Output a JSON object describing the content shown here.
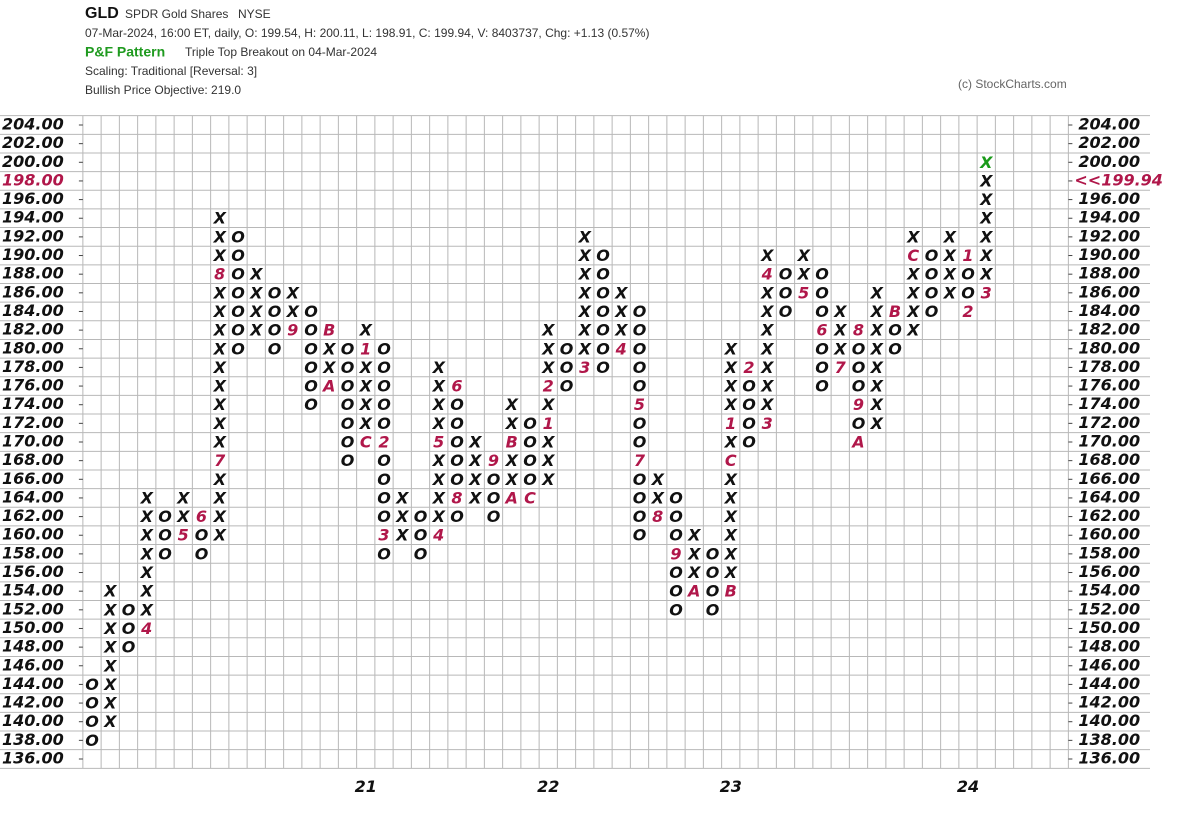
{
  "header": {
    "symbol": "GLD",
    "name": "SPDR Gold Shares",
    "exchange": "NYSE",
    "quote": "07-Mar-2024, 16:00 ET, daily, O: 199.54, H: 200.11, L: 198.91, C: 199.94, V: 8403737, Chg: +1.13 (0.57%)",
    "pattern_label": "P&F Pattern",
    "pattern": "Triple Top Breakout on 04-Mar-2024",
    "scaling": "Scaling: Traditional [Reversal: 3]",
    "objective": "Bullish Price Objective: 219.0",
    "credit": "(c) StockCharts.com"
  },
  "chart_data": {
    "type": "point-and-figure",
    "ylim": [
      136,
      204
    ],
    "yticks": [
      {
        "value": 204,
        "label": "204.00"
      },
      {
        "value": 202,
        "label": "202.00"
      },
      {
        "value": 200,
        "label": "200.00"
      },
      {
        "value": 198,
        "label": "198.00"
      },
      {
        "value": 196,
        "label": "196.00"
      },
      {
        "value": 194,
        "label": "194.00"
      },
      {
        "value": 192,
        "label": "192.00"
      },
      {
        "value": 190,
        "label": "190.00"
      },
      {
        "value": 188,
        "label": "188.00"
      },
      {
        "value": 186,
        "label": "186.00"
      },
      {
        "value": 184,
        "label": "184.00"
      },
      {
        "value": 182,
        "label": "182.00"
      },
      {
        "value": 180,
        "label": "180.00"
      },
      {
        "value": 178,
        "label": "178.00"
      },
      {
        "value": 176,
        "label": "176.00"
      },
      {
        "value": 174,
        "label": "174.00"
      },
      {
        "value": 172,
        "label": "172.00"
      },
      {
        "value": 170,
        "label": "170.00"
      },
      {
        "value": 168,
        "label": "168.00"
      },
      {
        "value": 166,
        "label": "166.00"
      },
      {
        "value": 164,
        "label": "164.00"
      },
      {
        "value": 162,
        "label": "162.00"
      },
      {
        "value": 160,
        "label": "160.00"
      },
      {
        "value": 158,
        "label": "158.00"
      },
      {
        "value": 156,
        "label": "156.00"
      },
      {
        "value": 154,
        "label": "154.00"
      },
      {
        "value": 152,
        "label": "152.00"
      },
      {
        "value": 150,
        "label": "150.00"
      },
      {
        "value": 148,
        "label": "148.00"
      },
      {
        "value": 146,
        "label": "146.00"
      },
      {
        "value": 144,
        "label": "144.00"
      },
      {
        "value": 142,
        "label": "142.00"
      },
      {
        "value": 140,
        "label": "140.00"
      },
      {
        "value": 138,
        "label": "138.00"
      },
      {
        "value": 136,
        "label": "136.00"
      }
    ],
    "last": {
      "value": 199.94,
      "label": "<<199.94"
    },
    "colors": {
      "symbol": "#111111",
      "month": "#b0174a",
      "current": "#1a9a1a",
      "grid": "#b8b8b8"
    },
    "year_marks": [
      {
        "column": 15,
        "label": "21"
      },
      {
        "column": 25,
        "label": "22"
      },
      {
        "column": 35,
        "label": "23"
      },
      {
        "column": 48,
        "label": "24"
      }
    ],
    "columns": [
      {
        "type": "O",
        "low": 138,
        "high": 144,
        "markers": []
      },
      {
        "type": "X",
        "low": 140,
        "high": 154,
        "markers": []
      },
      {
        "type": "O",
        "low": 148,
        "high": 152,
        "markers": []
      },
      {
        "type": "X",
        "low": 150,
        "high": 164,
        "markers": [
          {
            "value": 150,
            "label": "4"
          }
        ]
      },
      {
        "type": "O",
        "low": 158,
        "high": 162,
        "markers": []
      },
      {
        "type": "X",
        "low": 160,
        "high": 164,
        "markers": [
          {
            "value": 160,
            "label": "5"
          }
        ]
      },
      {
        "type": "O",
        "low": 158,
        "high": 162,
        "markers": [
          {
            "value": 162,
            "label": "6"
          }
        ]
      },
      {
        "type": "X",
        "low": 160,
        "high": 194,
        "markers": [
          {
            "value": 168,
            "label": "7"
          },
          {
            "value": 188,
            "label": "8"
          }
        ]
      },
      {
        "type": "O",
        "low": 180,
        "high": 192,
        "markers": []
      },
      {
        "type": "X",
        "low": 182,
        "high": 188,
        "markers": []
      },
      {
        "type": "O",
        "low": 180,
        "high": 186,
        "markers": []
      },
      {
        "type": "X",
        "low": 182,
        "high": 186,
        "markers": [
          {
            "value": 182,
            "label": "9"
          }
        ]
      },
      {
        "type": "O",
        "low": 174,
        "high": 184,
        "markers": []
      },
      {
        "type": "X",
        "low": 176,
        "high": 182,
        "markers": [
          {
            "value": 176,
            "label": "A"
          },
          {
            "value": 182,
            "label": "B"
          }
        ]
      },
      {
        "type": "O",
        "low": 168,
        "high": 180,
        "markers": []
      },
      {
        "type": "X",
        "low": 170,
        "high": 182,
        "markers": [
          {
            "value": 170,
            "label": "C"
          },
          {
            "value": 180,
            "label": "1"
          }
        ]
      },
      {
        "type": "O",
        "low": 158,
        "high": 180,
        "markers": [
          {
            "value": 170,
            "label": "2"
          },
          {
            "value": 160,
            "label": "3"
          }
        ]
      },
      {
        "type": "X",
        "low": 160,
        "high": 164,
        "markers": []
      },
      {
        "type": "O",
        "low": 158,
        "high": 162,
        "markers": []
      },
      {
        "type": "X",
        "low": 160,
        "high": 178,
        "markers": [
          {
            "value": 160,
            "label": "4"
          },
          {
            "value": 170,
            "label": "5"
          }
        ]
      },
      {
        "type": "O",
        "low": 162,
        "high": 176,
        "markers": [
          {
            "value": 176,
            "label": "6"
          },
          {
            "value": 164,
            "label": "8"
          }
        ]
      },
      {
        "type": "X",
        "low": 164,
        "high": 170,
        "markers": []
      },
      {
        "type": "O",
        "low": 162,
        "high": 168,
        "markers": [
          {
            "value": 168,
            "label": "9"
          }
        ]
      },
      {
        "type": "X",
        "low": 164,
        "high": 174,
        "markers": [
          {
            "value": 164,
            "label": "A"
          },
          {
            "value": 170,
            "label": "B"
          }
        ]
      },
      {
        "type": "O",
        "low": 164,
        "high": 172,
        "markers": [
          {
            "value": 164,
            "label": "C"
          }
        ]
      },
      {
        "type": "X",
        "low": 166,
        "high": 182,
        "markers": [
          {
            "value": 172,
            "label": "1"
          },
          {
            "value": 176,
            "label": "2"
          }
        ]
      },
      {
        "type": "O",
        "low": 176,
        "high": 180,
        "markers": []
      },
      {
        "type": "X",
        "low": 178,
        "high": 192,
        "markers": [
          {
            "value": 178,
            "label": "3"
          }
        ]
      },
      {
        "type": "O",
        "low": 178,
        "high": 190,
        "markers": []
      },
      {
        "type": "X",
        "low": 180,
        "high": 186,
        "markers": [
          {
            "value": 180,
            "label": "4"
          }
        ]
      },
      {
        "type": "O",
        "low": 160,
        "high": 184,
        "markers": [
          {
            "value": 174,
            "label": "5"
          },
          {
            "value": 168,
            "label": "7"
          }
        ]
      },
      {
        "type": "X",
        "low": 162,
        "high": 166,
        "markers": [
          {
            "value": 162,
            "label": "8"
          }
        ]
      },
      {
        "type": "O",
        "low": 152,
        "high": 164,
        "markers": [
          {
            "value": 158,
            "label": "9"
          }
        ]
      },
      {
        "type": "X",
        "low": 154,
        "high": 160,
        "markers": [
          {
            "value": 154,
            "label": "A"
          }
        ]
      },
      {
        "type": "O",
        "low": 152,
        "high": 158,
        "markers": []
      },
      {
        "type": "X",
        "low": 154,
        "high": 180,
        "markers": [
          {
            "value": 154,
            "label": "B"
          },
          {
            "value": 168,
            "label": "C"
          },
          {
            "value": 172,
            "label": "1"
          }
        ]
      },
      {
        "type": "O",
        "low": 170,
        "high": 178,
        "markers": [
          {
            "value": 178,
            "label": "2"
          }
        ]
      },
      {
        "type": "X",
        "low": 172,
        "high": 190,
        "markers": [
          {
            "value": 172,
            "label": "3"
          },
          {
            "value": 188,
            "label": "4"
          }
        ]
      },
      {
        "type": "O",
        "low": 184,
        "high": 188,
        "markers": []
      },
      {
        "type": "X",
        "low": 186,
        "high": 190,
        "markers": [
          {
            "value": 186,
            "label": "5"
          }
        ]
      },
      {
        "type": "O",
        "low": 176,
        "high": 188,
        "markers": [
          {
            "value": 182,
            "label": "6"
          }
        ]
      },
      {
        "type": "X",
        "low": 178,
        "high": 184,
        "markers": [
          {
            "value": 178,
            "label": "7"
          }
        ]
      },
      {
        "type": "O",
        "low": 170,
        "high": 182,
        "markers": [
          {
            "value": 182,
            "label": "8"
          },
          {
            "value": 174,
            "label": "9"
          },
          {
            "value": 170,
            "label": "A"
          }
        ]
      },
      {
        "type": "X",
        "low": 172,
        "high": 186,
        "markers": []
      },
      {
        "type": "O",
        "low": 180,
        "high": 184,
        "markers": [
          {
            "value": 184,
            "label": "B"
          }
        ]
      },
      {
        "type": "X",
        "low": 182,
        "high": 192,
        "markers": [
          {
            "value": 190,
            "label": "C"
          }
        ]
      },
      {
        "type": "O",
        "low": 184,
        "high": 190,
        "markers": []
      },
      {
        "type": "X",
        "low": 186,
        "high": 192,
        "markers": []
      },
      {
        "type": "O",
        "low": 184,
        "high": 190,
        "markers": [
          {
            "value": 190,
            "label": "1"
          },
          {
            "value": 184,
            "label": "2"
          }
        ]
      },
      {
        "type": "X",
        "low": 186,
        "high": 200,
        "markers": [
          {
            "value": 186,
            "label": "3"
          }
        ]
      }
    ]
  }
}
